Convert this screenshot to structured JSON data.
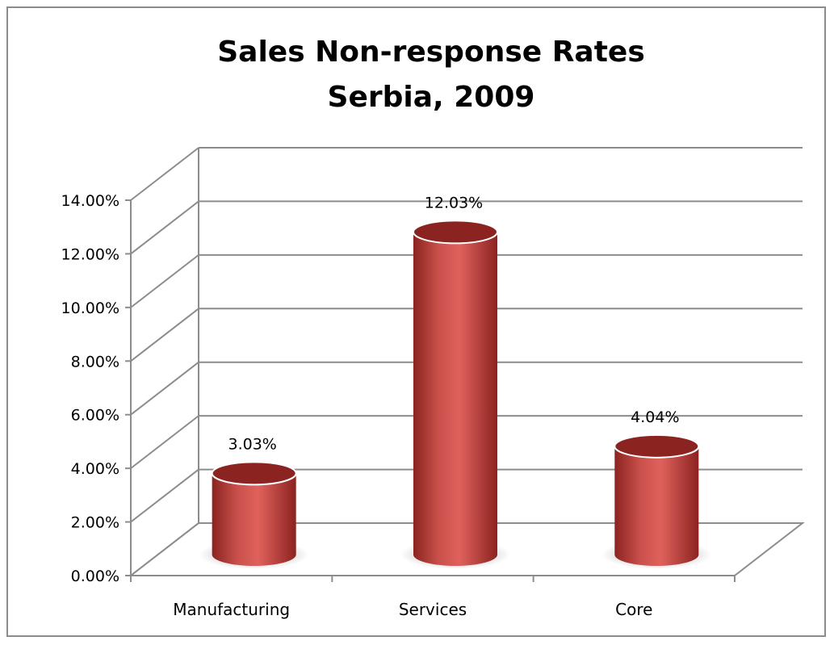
{
  "chart_data": {
    "type": "bar",
    "style": "3d-cylinder",
    "title": [
      "Sales Non-response Rates",
      "Serbia, 2009"
    ],
    "categories": [
      "Manufacturing",
      "Services",
      "Core"
    ],
    "values": [
      3.03,
      12.03,
      4.04
    ],
    "data_labels": [
      "3.03%",
      "12.03%",
      "4.04%"
    ],
    "ylim": [
      0,
      14
    ],
    "y_ticks": [
      0,
      2,
      4,
      6,
      8,
      10,
      12,
      14
    ],
    "y_tick_labels": [
      "0.00%",
      "2.00%",
      "4.00%",
      "6.00%",
      "8.00%",
      "10.00%",
      "12.00%",
      "14.00%"
    ],
    "xlabel": "",
    "ylabel": "",
    "grid": true,
    "legend": false,
    "colors": {
      "bar": "#c0504d",
      "bar_dark": "#8b2320",
      "bar_light": "#e37a76",
      "grid": "#8c8c8c",
      "frame": "#8c8c8c"
    }
  }
}
